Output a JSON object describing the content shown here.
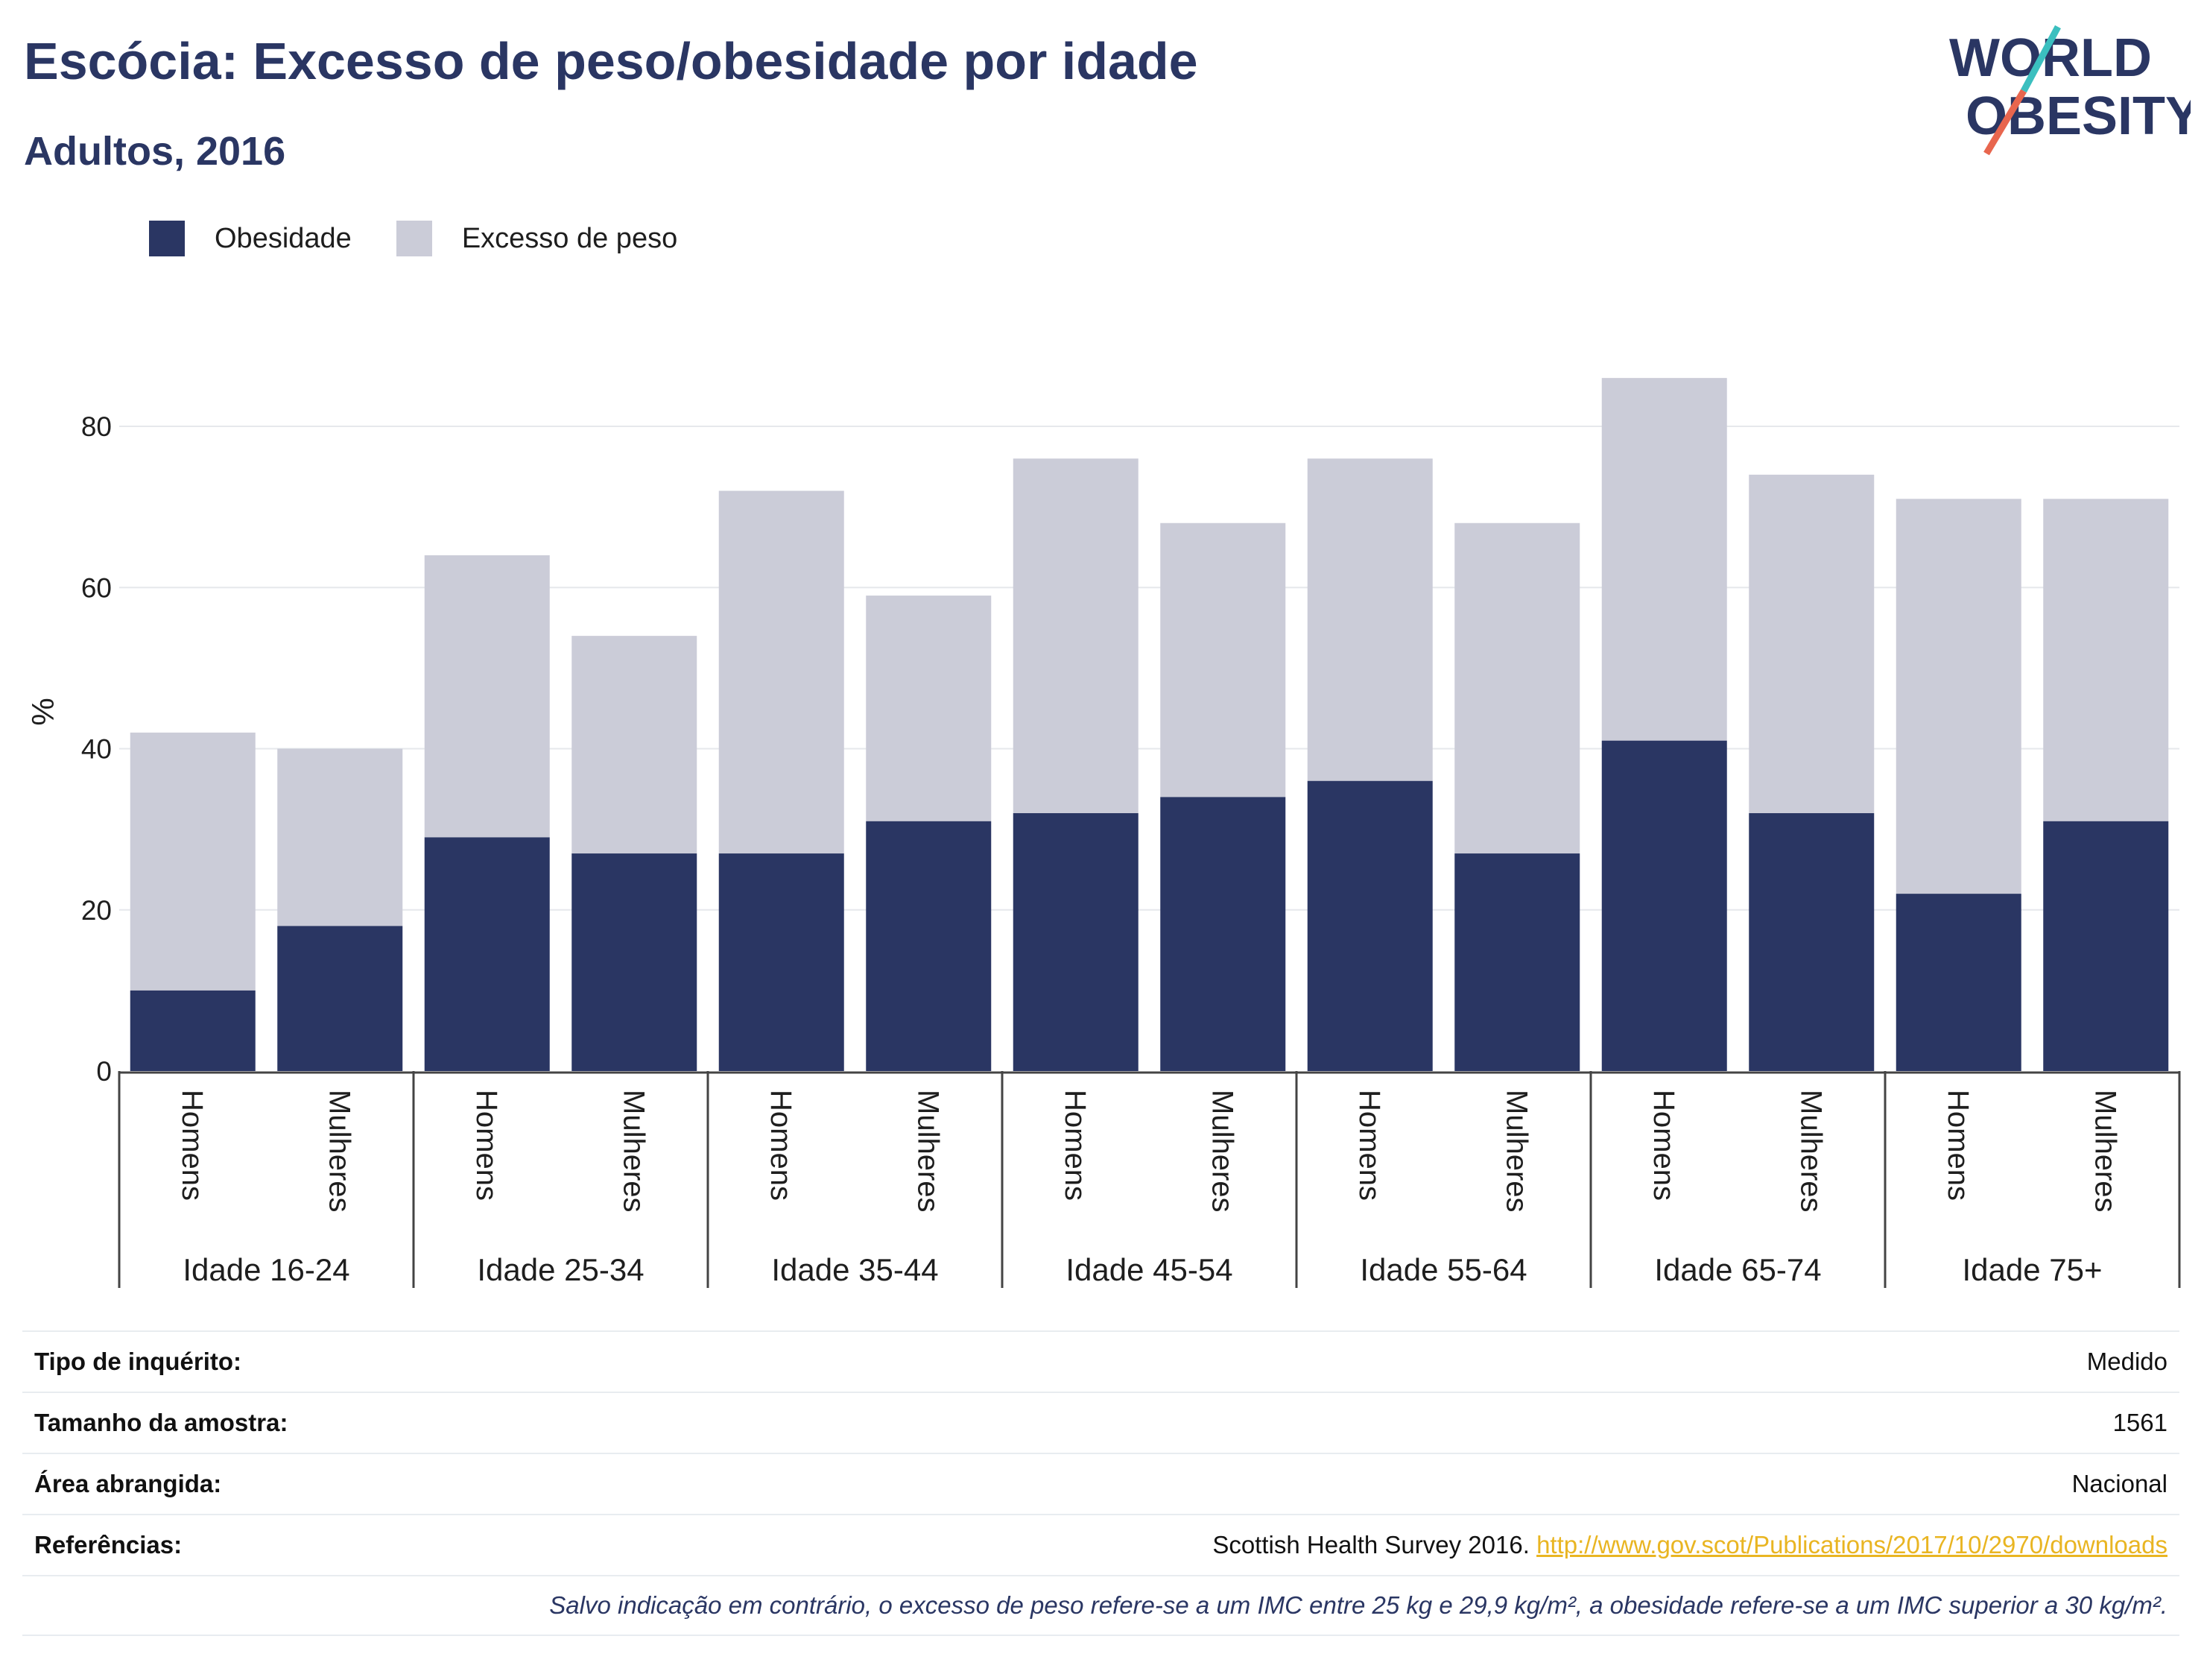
{
  "title": "Escócia: Excesso de peso/obesidade por idade",
  "subtitle": "Adultos, 2016",
  "logo": {
    "line1": "WORLD",
    "line2": "OBESITY"
  },
  "colors": {
    "obesity": "#2a3663",
    "overweight": "#cbccd8",
    "accent_teal": "#3bbfbf",
    "accent_red": "#e8664e"
  },
  "chart_data": {
    "type": "bar",
    "stacked": true,
    "title": "Escócia: Excesso de peso/obesidade por idade",
    "subtitle": "Adultos, 2016",
    "ylabel": "%",
    "ylim": [
      0,
      90
    ],
    "yticks": [
      0,
      20,
      40,
      60,
      80
    ],
    "groups": [
      "Idade 16-24",
      "Idade 25-34",
      "Idade 35-44",
      "Idade 45-54",
      "Idade 55-64",
      "Idade 65-74",
      "Idade 75+"
    ],
    "categories": [
      "Homens",
      "Mulheres",
      "Homens",
      "Mulheres",
      "Homens",
      "Mulheres",
      "Homens",
      "Mulheres",
      "Homens",
      "Mulheres",
      "Homens",
      "Mulheres",
      "Homens",
      "Mulheres"
    ],
    "series": [
      {
        "name": "Obesidade",
        "color": "#2a3663",
        "values": [
          10,
          18,
          29,
          27,
          27,
          31,
          32,
          34,
          36,
          27,
          41,
          32,
          22,
          31
        ]
      },
      {
        "name": "Excesso de peso",
        "color": "#cbccd8",
        "values": [
          32,
          22,
          35,
          27,
          45,
          28,
          44,
          34,
          40,
          41,
          45,
          42,
          49,
          40
        ]
      }
    ],
    "legend": [
      "Obesidade",
      "Excesso de peso"
    ],
    "legend_position": "top-left",
    "grid": true
  },
  "info": [
    {
      "key": "Tipo de inquérito:",
      "value": "Medido"
    },
    {
      "key": "Tamanho da amostra:",
      "value": "1561"
    },
    {
      "key": "Área abrangida:",
      "value": "Nacional"
    },
    {
      "key": "Referências:",
      "value": "Scottish Health Survey 2016.",
      "link": "http://www.gov.scot/Publications/2017/10/2970/downloads"
    }
  ],
  "note": "Salvo indicação em contrário, o excesso de peso refere-se a um IMC entre 25 kg e 29,9 kg/m², a obesidade refere-se a um IMC superior a 30 kg/m²."
}
